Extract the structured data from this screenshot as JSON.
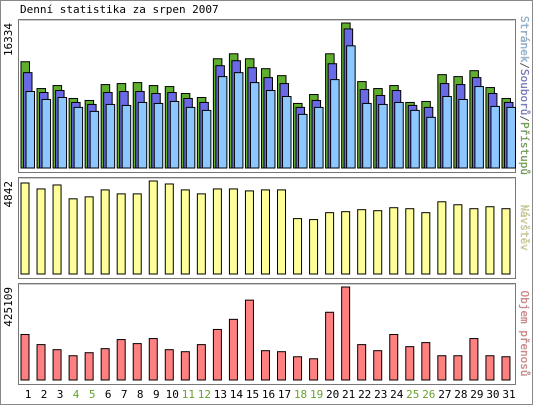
{
  "title": "Denní statistika za srpen 2007",
  "categories": [
    "1",
    "2",
    "3",
    "4",
    "5",
    "6",
    "7",
    "8",
    "9",
    "10",
    "11",
    "12",
    "13",
    "14",
    "15",
    "16",
    "17",
    "18",
    "19",
    "20",
    "21",
    "22",
    "23",
    "24",
    "25",
    "26",
    "27",
    "28",
    "29",
    "30",
    "31"
  ],
  "category_colors": [
    "#000000",
    "#000000",
    "#000000",
    "#66a22c",
    "#66a22c",
    "#000000",
    "#000000",
    "#000000",
    "#000000",
    "#000000",
    "#66a22c",
    "#66a22c",
    "#000000",
    "#000000",
    "#000000",
    "#000000",
    "#000000",
    "#66a22c",
    "#66a22c",
    "#000000",
    "#000000",
    "#000000",
    "#000000",
    "#000000",
    "#66a22c",
    "#66a22c",
    "#000000",
    "#000000",
    "#000000",
    "#000000",
    "#000000"
  ],
  "legend_separator": "/",
  "chart_data": [
    {
      "type": "bar",
      "ylim": [
        0,
        16334
      ],
      "yticks": [
        16334
      ],
      "series": [
        {
          "name": "Přístupů",
          "color": "#5fae2e",
          "values": [
            11971,
            8950,
            9286,
            7832,
            7608,
            9398,
            9510,
            9622,
            9286,
            9174,
            8391,
            7943,
            12307,
            12866,
            12307,
            11188,
            10405,
            7272,
            8279,
            12866,
            16334,
            9734,
            8950,
            9286,
            7384,
            7496,
            10517,
            10293,
            10964,
            9062,
            7832
          ]
        },
        {
          "name": "Souborů",
          "color": "#6a6ae6",
          "values": [
            10740,
            8503,
            8727,
            7384,
            7160,
            8503,
            8615,
            8615,
            8391,
            8503,
            7832,
            7384,
            11524,
            12083,
            11300,
            10181,
            9510,
            6825,
            7608,
            11747,
            15663,
            8839,
            8167,
            8727,
            7048,
            6825,
            9510,
            9398,
            10181,
            8391,
            7384
          ]
        },
        {
          "name": "Stránek",
          "color": "#8cc8ff",
          "values": [
            8615,
            7720,
            7943,
            6825,
            6377,
            7160,
            7048,
            7384,
            7272,
            7496,
            6825,
            6489,
            10293,
            10740,
            9622,
            8727,
            8055,
            6042,
            6825,
            9957,
            13761,
            7272,
            7160,
            7384,
            6489,
            5706,
            8055,
            7720,
            9174,
            6937,
            6825
          ]
        }
      ]
    },
    {
      "type": "bar",
      "ylim": [
        0,
        4842
      ],
      "yticks": [
        4842
      ],
      "series": [
        {
          "name": "Návštěv",
          "color": "#ffff99",
          "values": [
            4738,
            4429,
            4635,
            3914,
            4017,
            4378,
            4172,
            4172,
            4842,
            4687,
            4378,
            4172,
            4429,
            4429,
            4326,
            4378,
            4378,
            2884,
            2833,
            3193,
            3245,
            3348,
            3296,
            3451,
            3399,
            3193,
            3760,
            3605,
            3399,
            3502,
            3399
          ]
        }
      ]
    },
    {
      "type": "bar",
      "ylim": [
        0,
        425109
      ],
      "yticks": [
        425109
      ],
      "series": [
        {
          "name": "Objem přenosů",
          "color": "#ff8080",
          "values": [
            207945,
            161735,
            138630,
            110904,
            124767,
            143251,
            184840,
            166356,
            189461,
            138630,
            129388,
            161735,
            231050,
            277260,
            365059,
            134009,
            129388,
            106283,
            97041,
            309607,
            425109,
            161735,
            134009,
            207945,
            152493,
            170977,
            110904,
            110904,
            189461,
            110904,
            106283
          ]
        }
      ]
    }
  ]
}
